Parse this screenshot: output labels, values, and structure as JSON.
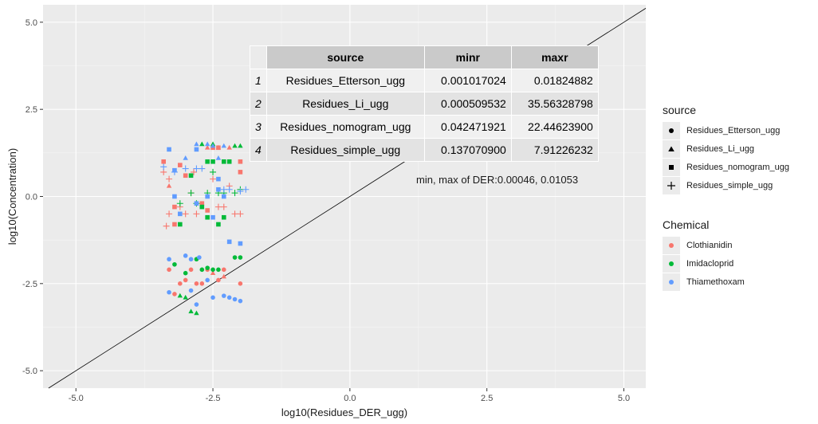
{
  "chart_data": {
    "type": "scatter",
    "xlabel": "log10(Residues_DER_ugg)",
    "ylabel": "log10(Concentration)",
    "xlim": [
      -5.6,
      5.4
    ],
    "ylim": [
      -5.5,
      5.5
    ],
    "x_ticks": [
      -5.0,
      -2.5,
      0.0,
      2.5,
      5.0
    ],
    "x_tick_labels": [
      "-5.0",
      "-2.5",
      "0.0",
      "2.5",
      "5.0"
    ],
    "y_ticks": [
      -5.0,
      -2.5,
      0.0,
      2.5,
      5.0
    ],
    "y_tick_labels": [
      "-5.0",
      "-2.5",
      "0.0",
      "2.5",
      "5.0"
    ],
    "grid": true,
    "reference_line": {
      "slope": 1,
      "intercept": 0
    },
    "legend_position": "right",
    "legends": [
      {
        "title": "source",
        "entries": [
          {
            "label": "Residues_Etterson_ugg",
            "shape": "circle"
          },
          {
            "label": "Residues_Li_ugg",
            "shape": "triangle"
          },
          {
            "label": "Residues_nomogram_ugg",
            "shape": "square"
          },
          {
            "label": "Residues_simple_ugg",
            "shape": "plus"
          }
        ]
      },
      {
        "title": "Chemical",
        "entries": [
          {
            "label": "Clothianidin",
            "color": "#F8766D"
          },
          {
            "label": "Imidacloprid",
            "color": "#00BA38"
          },
          {
            "label": "Thiamethoxam",
            "color": "#619CFF"
          }
        ]
      }
    ],
    "table": {
      "columns": [
        "",
        "source",
        "minr",
        "maxr"
      ],
      "rows": [
        [
          "1",
          "Residues_Etterson_ugg",
          "0.001017024",
          "0.01824882"
        ],
        [
          "2",
          "Residues_Li_ugg",
          "0.000509532",
          "35.56328798"
        ],
        [
          "3",
          "Residues_nomogram_ugg",
          "0.042471921",
          "22.44623900"
        ],
        [
          "4",
          "Residues_simple_ugg",
          "0.137070900",
          "7.91226232"
        ]
      ]
    },
    "annotation": "min, max of DER:0.00046, 0.01053",
    "series": [
      {
        "source": "Residues_simple_ugg",
        "chemical": "Clothianidin",
        "points": [
          [
            -3.4,
            0.7
          ],
          [
            -3.3,
            0.5
          ],
          [
            -3.3,
            -0.5
          ],
          [
            -3.1,
            -0.3
          ],
          [
            -3.0,
            -0.5
          ],
          [
            -2.9,
            0.1
          ],
          [
            -2.85,
            0.7
          ],
          [
            -2.8,
            -0.5
          ],
          [
            -2.5,
            0.5
          ],
          [
            -2.4,
            -0.3
          ],
          [
            -2.3,
            -0.3
          ],
          [
            -2.2,
            0.3
          ],
          [
            -2.1,
            -0.5
          ],
          [
            -2.0,
            -0.5
          ],
          [
            -3.35,
            -0.85
          ]
        ]
      },
      {
        "source": "Residues_simple_ugg",
        "chemical": "Imidacloprid",
        "points": [
          [
            -3.1,
            -0.2
          ],
          [
            -2.9,
            0.1
          ],
          [
            -2.8,
            -0.2
          ],
          [
            -2.6,
            0.1
          ],
          [
            -2.4,
            0.1
          ],
          [
            -2.3,
            0.1
          ],
          [
            -2.1,
            0.1
          ],
          [
            -2.0,
            0.2
          ],
          [
            -2.5,
            0.7
          ]
        ]
      },
      {
        "source": "Residues_simple_ugg",
        "chemical": "Thiamethoxam",
        "points": [
          [
            -3.4,
            0.85
          ],
          [
            -3.2,
            0.7
          ],
          [
            -3.0,
            0.8
          ],
          [
            -2.8,
            0.8
          ],
          [
            -2.7,
            0.8
          ],
          [
            -2.3,
            0.2
          ],
          [
            -2.2,
            0.2
          ],
          [
            -1.9,
            0.2
          ],
          [
            -2.0,
            0.15
          ]
        ]
      },
      {
        "source": "Residues_nomogram_ugg",
        "chemical": "Clothianidin",
        "points": [
          [
            -3.4,
            1.0
          ],
          [
            -3.1,
            0.9
          ],
          [
            -3.0,
            0.6
          ],
          [
            -2.5,
            1.4
          ],
          [
            -2.4,
            1.4
          ],
          [
            -2.7,
            -0.2
          ],
          [
            -2.6,
            -0.4
          ],
          [
            -3.2,
            -0.3
          ],
          [
            -2.0,
            1.0
          ],
          [
            -2.0,
            0.7
          ],
          [
            -3.2,
            -0.8
          ]
        ]
      },
      {
        "source": "Residues_nomogram_ugg",
        "chemical": "Imidacloprid",
        "points": [
          [
            -2.9,
            0.6
          ],
          [
            -2.6,
            1.0
          ],
          [
            -2.5,
            1.0
          ],
          [
            -2.3,
            1.0
          ],
          [
            -2.2,
            1.0
          ],
          [
            -2.7,
            -0.3
          ],
          [
            -2.6,
            -0.6
          ],
          [
            -3.1,
            -0.8
          ],
          [
            -2.4,
            -0.8
          ],
          [
            -2.3,
            -0.6
          ]
        ]
      },
      {
        "source": "Residues_nomogram_ugg",
        "chemical": "Thiamethoxam",
        "points": [
          [
            -3.3,
            1.35
          ],
          [
            -3.2,
            0.75
          ],
          [
            -2.8,
            1.35
          ],
          [
            -2.4,
            0.5
          ],
          [
            -2.3,
            0.0
          ],
          [
            -2.0,
            -1.35
          ],
          [
            -3.2,
            0.0
          ],
          [
            -3.1,
            -0.5
          ],
          [
            -2.8,
            -0.2
          ],
          [
            -2.5,
            -0.6
          ],
          [
            -2.2,
            -1.3
          ],
          [
            -2.6,
            0.0
          ],
          [
            -2.4,
            0.2
          ]
        ]
      },
      {
        "source": "Residues_Li_ugg",
        "chemical": "Clothianidin",
        "points": [
          [
            -2.6,
            1.4
          ],
          [
            -2.4,
            1.4
          ],
          [
            -2.2,
            1.4
          ],
          [
            -3.3,
            0.3
          ],
          [
            -2.5,
            -2.2
          ],
          [
            -2.3,
            -2.3
          ]
        ]
      },
      {
        "source": "Residues_Li_ugg",
        "chemical": "Imidacloprid",
        "points": [
          [
            -2.7,
            1.5
          ],
          [
            -2.5,
            1.5
          ],
          [
            -2.1,
            1.45
          ],
          [
            -2.0,
            1.45
          ],
          [
            -3.1,
            -2.85
          ],
          [
            -3.0,
            -2.9
          ],
          [
            -2.9,
            -3.3
          ],
          [
            -2.8,
            -3.35
          ]
        ]
      },
      {
        "source": "Residues_Li_ugg",
        "chemical": "Thiamethoxam",
        "points": [
          [
            -2.6,
            1.5
          ],
          [
            -2.5,
            1.45
          ],
          [
            -2.8,
            1.5
          ],
          [
            -3.0,
            1.1
          ],
          [
            -2.4,
            1.1
          ],
          [
            -2.3,
            1.45
          ]
        ]
      },
      {
        "source": "Residues_Etterson_ugg",
        "chemical": "Clothianidin",
        "points": [
          [
            -3.3,
            -2.1
          ],
          [
            -3.1,
            -2.5
          ],
          [
            -3.0,
            -2.4
          ],
          [
            -2.9,
            -2.1
          ],
          [
            -2.8,
            -2.5
          ],
          [
            -2.7,
            -2.5
          ],
          [
            -2.6,
            -2.1
          ],
          [
            -2.4,
            -2.4
          ],
          [
            -2.3,
            -2.1
          ],
          [
            -2.0,
            -2.5
          ],
          [
            -3.2,
            -2.8
          ]
        ]
      },
      {
        "source": "Residues_Etterson_ugg",
        "chemical": "Imidacloprid",
        "points": [
          [
            -3.2,
            -1.95
          ],
          [
            -2.8,
            -1.8
          ],
          [
            -2.7,
            -2.1
          ],
          [
            -2.6,
            -2.05
          ],
          [
            -2.5,
            -2.1
          ],
          [
            -2.4,
            -2.1
          ],
          [
            -2.1,
            -1.75
          ],
          [
            -2.0,
            -1.75
          ],
          [
            -3.0,
            -2.2
          ]
        ]
      },
      {
        "source": "Residues_Etterson_ugg",
        "chemical": "Thiamethoxam",
        "points": [
          [
            -3.3,
            -1.8
          ],
          [
            -3.0,
            -1.7
          ],
          [
            -2.9,
            -1.8
          ],
          [
            -2.75,
            -1.75
          ],
          [
            -2.6,
            -2.4
          ],
          [
            -2.3,
            -2.85
          ],
          [
            -2.2,
            -2.9
          ],
          [
            -2.1,
            -2.95
          ],
          [
            -2.0,
            -3.0
          ],
          [
            -2.5,
            -2.9
          ],
          [
            -2.8,
            -3.1
          ],
          [
            -2.9,
            -2.7
          ],
          [
            -3.3,
            -2.75
          ]
        ]
      }
    ]
  }
}
